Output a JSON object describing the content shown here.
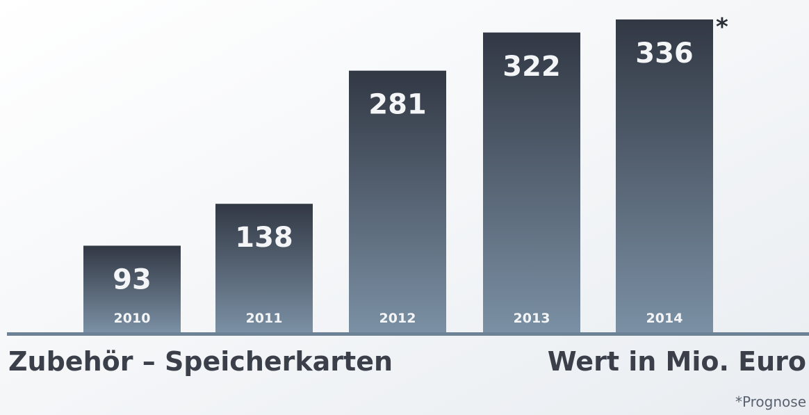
{
  "chart_data": {
    "type": "bar",
    "title": "Zubehör – Speicherkarten",
    "subtitle": "Wert in Mio. Euro",
    "footnote": "*Prognose",
    "forecast_marker": "*",
    "categories": [
      "2010",
      "2011",
      "2012",
      "2013",
      "2014"
    ],
    "values": [
      93,
      138,
      281,
      322,
      336
    ],
    "color": "#3a404c"
  }
}
